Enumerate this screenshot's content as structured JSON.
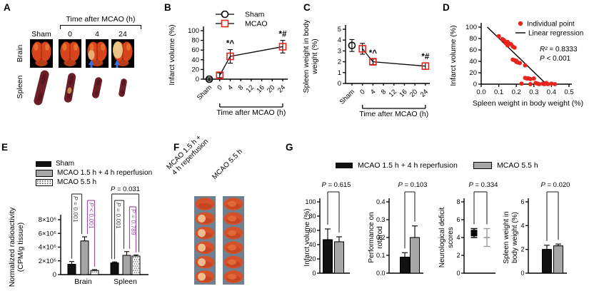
{
  "colors": {
    "mcao_red": "#e8251c",
    "bracket_purple": "#9b4f9f",
    "bar_gray": "#a6a6a6",
    "arrow_blue": "#3f6fd8"
  },
  "panels": {
    "A": {
      "label": "A",
      "header": "Time after MCAO (h)",
      "columns": [
        "Sham",
        "0",
        "4",
        "24"
      ],
      "row_labels": [
        "Brain",
        "Spleen"
      ]
    },
    "B": {
      "label": "B"
    },
    "C": {
      "label": "C"
    },
    "D": {
      "label": "D"
    },
    "E": {
      "label": "E",
      "legend": [
        "Sham",
        "MCAO 1.5 h + 4 h reperfusion",
        "MCAO 5.5 h"
      ]
    },
    "F": {
      "label": "F",
      "column1": [
        "MCAO 1.5 h +",
        "4 h reperfusion"
      ],
      "column2": [
        "MCAO 5.5 h"
      ]
    },
    "G": {
      "label": "G",
      "legend": [
        "MCAO 1.5 h + 4 h reperfusion",
        "MCAO 5.5 h"
      ]
    }
  },
  "chart_data": [
    {
      "id": "B",
      "type": "line",
      "ylabel": [
        "Infarct volume (%)"
      ],
      "ylim": [
        0,
        100
      ],
      "yticks": [
        0,
        20,
        40,
        60,
        80,
        100
      ],
      "xcategories": [
        "Sham",
        "0",
        "4",
        "8",
        "12",
        "16",
        "20",
        "24"
      ],
      "xlabel": "Time after MCAO (h)",
      "legend_labels": [
        "Sham",
        "MCAO"
      ],
      "series": [
        {
          "name": "Sham",
          "marker": "circle",
          "color": "#000000",
          "points": [
            {
              "x": "Sham",
              "y": 0,
              "err": 3
            }
          ]
        },
        {
          "name": "MCAO",
          "marker": "square",
          "color": "#e8251c",
          "points": [
            {
              "x": "0",
              "y": 8,
              "err": 5
            },
            {
              "x": "4",
              "y": 47,
              "err": 14,
              "annotation": "*^"
            },
            {
              "x": "24",
              "y": 67,
              "err": 13,
              "annotation": "*#"
            }
          ]
        }
      ]
    },
    {
      "id": "C",
      "type": "line",
      "ylabel": [
        "Spleen weight in body",
        "weight (%)"
      ],
      "ylim": [
        0,
        5
      ],
      "yticks": [
        0,
        1,
        2,
        3,
        4,
        5
      ],
      "xcategories": [
        "Sham",
        "0",
        "4",
        "8",
        "12",
        "16",
        "20",
        "24"
      ],
      "xlabel": "Time after MCAO (h)",
      "series": [
        {
          "name": "Sham",
          "marker": "circle",
          "color": "#000000",
          "points": [
            {
              "x": "Sham",
              "y": 3.5,
              "err": 0.55
            }
          ]
        },
        {
          "name": "MCAO",
          "marker": "square",
          "color": "#e8251c",
          "points": [
            {
              "x": "0",
              "y": 3.2,
              "err": 0.5
            },
            {
              "x": "4",
              "y": 2.0,
              "err": 0.25,
              "annotation": "*^"
            },
            {
              "x": "24",
              "y": 1.6,
              "err": 0.3,
              "annotation": "*#"
            }
          ]
        }
      ]
    },
    {
      "id": "D",
      "type": "scatter",
      "ylabel": [
        "Infarct volume (%)"
      ],
      "xlabel": "Spleen weight in body weight (%)",
      "xlim": [
        0,
        0.5
      ],
      "xticks": [
        "0.0",
        "0.1",
        "0.2",
        "0.3",
        "0.4",
        "0.5"
      ],
      "ylim": [
        0,
        100
      ],
      "yticks": [
        0,
        20,
        40,
        60,
        80,
        100
      ],
      "legend": [
        "Individual point",
        "Linear regression"
      ],
      "stats": [
        "R² = 0.8333",
        "P < 0.001"
      ],
      "point_color": "#e8251c",
      "regression": [
        [
          0.035,
          100
        ],
        [
          0.378,
          -2
        ]
      ],
      "points": [
        [
          0.1,
          84
        ],
        [
          0.12,
          79
        ],
        [
          0.13,
          77
        ],
        [
          0.14,
          72
        ],
        [
          0.15,
          74
        ],
        [
          0.15,
          68
        ],
        [
          0.16,
          71
        ],
        [
          0.17,
          70
        ],
        [
          0.18,
          66
        ],
        [
          0.19,
          64
        ],
        [
          0.18,
          43
        ],
        [
          0.19,
          42
        ],
        [
          0.2,
          41
        ],
        [
          0.2,
          39
        ],
        [
          0.21,
          38
        ],
        [
          0.22,
          37
        ],
        [
          0.25,
          33
        ],
        [
          0.25,
          11
        ],
        [
          0.26,
          10
        ],
        [
          0.27,
          10
        ],
        [
          0.28,
          9
        ],
        [
          0.3,
          10
        ],
        [
          0.23,
          1
        ],
        [
          0.28,
          0
        ],
        [
          0.31,
          2
        ],
        [
          0.32,
          1
        ],
        [
          0.33,
          0
        ],
        [
          0.35,
          1
        ],
        [
          0.36,
          0
        ],
        [
          0.37,
          2
        ],
        [
          0.38,
          0
        ],
        [
          0.4,
          1
        ],
        [
          0.42,
          0
        ]
      ]
    },
    {
      "id": "E",
      "type": "bar",
      "ylabel": [
        "Normalized radioactivity",
        "(CPM/g tissue)"
      ],
      "ylim": [
        0,
        8000000
      ],
      "yticks": [
        {
          "v": 0,
          "label": "0"
        },
        {
          "v": 2000000,
          "label": "2×10⁶"
        },
        {
          "v": 4000000,
          "label": "4×10⁶"
        },
        {
          "v": 6000000,
          "label": "6×10⁶"
        },
        {
          "v": 8000000,
          "label": "8×10⁶"
        }
      ],
      "categories": [
        "Brain",
        "Spleen"
      ],
      "series": [
        {
          "name": "Sham",
          "style": "black",
          "values": [
            1500000,
            1700000
          ],
          "errors": [
            400000,
            150000
          ]
        },
        {
          "name": "MCAO 1.5 h + 4 h reperfusion",
          "style": "gray",
          "values": [
            4900000,
            2800000
          ],
          "errors": [
            600000,
            550000
          ]
        },
        {
          "name": "MCAO 5.5 h",
          "style": "dots",
          "values": [
            600000,
            2700000
          ],
          "errors": [
            120000,
            150000
          ]
        }
      ],
      "comparisons": [
        {
          "label": "P = 0.001",
          "group": 0,
          "a": 0,
          "b": 1,
          "color": "#3f3f3f",
          "level": 0,
          "orient": "v"
        },
        {
          "label": "P < 0.001",
          "group": 0,
          "a": 1,
          "b": 2,
          "color": "#9b4f9f",
          "level": 1,
          "orient": "v"
        },
        {
          "label": "P = 0.031",
          "group": 1,
          "a": 0,
          "b": 2,
          "color": "#3f3f3f",
          "level": 0,
          "orient": "h"
        },
        {
          "label": "P = 0.001",
          "group": 1,
          "a": 0,
          "b": 1,
          "color": "#3f3f3f",
          "level": 1,
          "orient": "v"
        },
        {
          "label": "P = 0.789",
          "group": 1,
          "a": 1,
          "b": 2,
          "color": "#9b4f9f",
          "level": 2,
          "orient": "v"
        }
      ]
    },
    {
      "id": "G1",
      "type": "bars2",
      "ylabel": [
        "Infarct volume (%)"
      ],
      "ylim": [
        0,
        100
      ],
      "yticks": [
        "0",
        "20",
        "40",
        "60",
        "80",
        "100"
      ],
      "p": "P = 0.615",
      "bars": [
        {
          "value": 47,
          "err": 15,
          "style": "black"
        },
        {
          "value": 44,
          "err": 7,
          "style": "gray"
        }
      ]
    },
    {
      "id": "G2",
      "type": "bars2",
      "ylabel": [
        "Performance on",
        "rotarod"
      ],
      "ylim": [
        0,
        0.4
      ],
      "yticks": [
        "0.0",
        "0.1",
        "0.2",
        "0.3",
        "0.4"
      ],
      "p": "P = 0.103",
      "bars": [
        {
          "value": 0.09,
          "err": 0.025,
          "style": "black"
        },
        {
          "value": 0.2,
          "err": 0.065,
          "style": "gray"
        }
      ]
    },
    {
      "id": "G3",
      "type": "points2",
      "ylabel": [
        "Neurological deficit",
        "scores"
      ],
      "ylim": [
        0,
        8
      ],
      "yticks": [
        "0",
        "2",
        "4",
        "6",
        "8"
      ],
      "p": "P = 0.334",
      "points": [
        {
          "value": 4.5,
          "err": 0.5,
          "style": "black"
        },
        {
          "value": 4.0,
          "err": 1.0,
          "style": "gray"
        }
      ]
    },
    {
      "id": "G4",
      "type": "bars2",
      "ylabel": [
        "Spleen weight in",
        "body weight (%)"
      ],
      "ylim": [
        0,
        6
      ],
      "yticks": [
        "0",
        "2",
        "4",
        "6"
      ],
      "p": "P = 0.020",
      "bars": [
        {
          "value": 2.0,
          "err": 0.35,
          "style": "black"
        },
        {
          "value": 2.3,
          "err": 0.15,
          "style": "gray"
        }
      ]
    }
  ]
}
